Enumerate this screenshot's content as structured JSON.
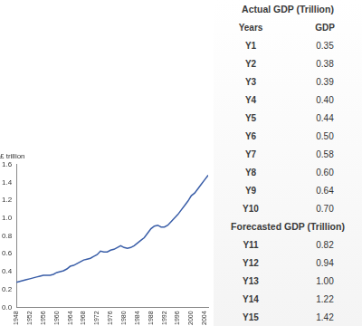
{
  "chart_data": {
    "type": "line",
    "y_label": "£ trillion",
    "x": [
      1948,
      1949,
      1950,
      1951,
      1952,
      1953,
      1954,
      1955,
      1956,
      1957,
      1958,
      1959,
      1960,
      1961,
      1962,
      1963,
      1964,
      1965,
      1966,
      1967,
      1968,
      1969,
      1970,
      1971,
      1972,
      1973,
      1974,
      1975,
      1976,
      1977,
      1978,
      1979,
      1980,
      1981,
      1982,
      1983,
      1984,
      1985,
      1986,
      1987,
      1988,
      1989,
      1990,
      1991,
      1992,
      1993,
      1994,
      1995,
      1996,
      1997,
      1998,
      1999,
      2000,
      2001,
      2002,
      2003,
      2004,
      2005
    ],
    "values": [
      0.28,
      0.29,
      0.3,
      0.31,
      0.32,
      0.33,
      0.34,
      0.35,
      0.36,
      0.36,
      0.36,
      0.37,
      0.39,
      0.4,
      0.41,
      0.43,
      0.46,
      0.47,
      0.49,
      0.51,
      0.53,
      0.54,
      0.55,
      0.57,
      0.59,
      0.63,
      0.62,
      0.62,
      0.64,
      0.65,
      0.67,
      0.69,
      0.67,
      0.66,
      0.67,
      0.69,
      0.72,
      0.75,
      0.78,
      0.83,
      0.88,
      0.91,
      0.92,
      0.9,
      0.9,
      0.92,
      0.96,
      1.0,
      1.04,
      1.09,
      1.14,
      1.19,
      1.25,
      1.28,
      1.33,
      1.38,
      1.43,
      1.48
    ],
    "color": "#3a5ea8",
    "xlim": [
      1948,
      2005
    ],
    "xticks": [
      1948,
      1952,
      1956,
      1960,
      1964,
      1968,
      1972,
      1976,
      1980,
      1984,
      1988,
      1992,
      1996,
      2000,
      2004
    ],
    "ylim": [
      0,
      1.6
    ],
    "yticks": [
      {
        "value": 0,
        "label": "0.0"
      },
      0.2,
      0.4,
      0.6,
      0.8,
      {
        "value": 1,
        "label": "1.0"
      },
      1.2,
      1.4,
      1.6
    ],
    "grid": false
  },
  "table": {
    "sections": [
      {
        "title": "Actual GDP (Trillion)",
        "columns": [
          "Years",
          "GDP"
        ],
        "rows": [
          [
            "Y1",
            "0.35"
          ],
          [
            "Y2",
            "0.38"
          ],
          [
            "Y3",
            "0.39"
          ],
          [
            "Y4",
            "0.40"
          ],
          [
            "Y5",
            "0.44"
          ],
          [
            "Y6",
            "0.50"
          ],
          [
            "Y7",
            "0.58"
          ],
          [
            "Y8",
            "0.60"
          ],
          [
            "Y9",
            "0.64"
          ],
          [
            "Y10",
            "0.70"
          ]
        ]
      },
      {
        "title": "Forecasted GDP (Trillion)",
        "rows": [
          [
            "Y11",
            "0.82"
          ],
          [
            "Y12",
            "0.94"
          ],
          [
            "Y13",
            "1.00"
          ],
          [
            "Y14",
            "1.22"
          ],
          [
            "Y15",
            "1.42"
          ]
        ]
      }
    ]
  }
}
